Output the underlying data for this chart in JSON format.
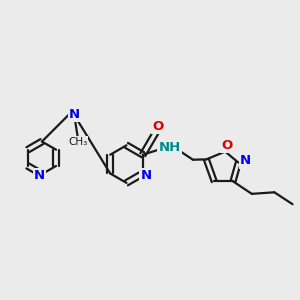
{
  "bg_color": "#ebebeb",
  "bond_color": "#1a1a1a",
  "bond_width": 1.6,
  "atom_colors": {
    "N": "#0000ee",
    "O": "#dd0000",
    "NH": "#008b8b",
    "C": "#1a1a1a"
  },
  "font_size": 9.5
}
